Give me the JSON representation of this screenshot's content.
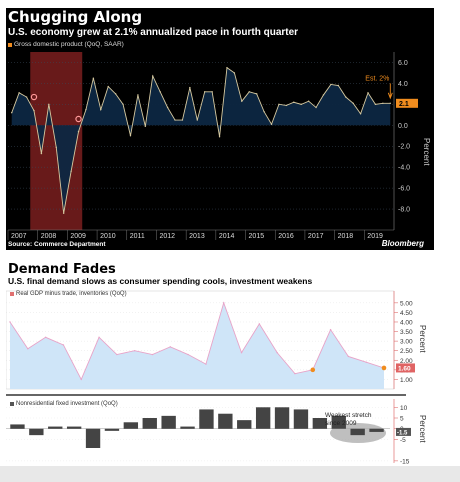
{
  "colors": {
    "area_top": "#0d2742",
    "line_top": "#d6c9a0",
    "recession": "#7a1e1e",
    "orange": "#f08c1e",
    "pink": "#ff9999",
    "area_bottom": "#cfe5f8",
    "line_bottom": "#e8a3c8",
    "bars": "#444444",
    "axis_bottom": "#e07070"
  },
  "top": {
    "title": "Chugging Along",
    "subtitle": "U.S. economy grew at 2.1% annualized pace in fourth quarter",
    "legend": "Gross domestic product (QoQ, SAAR)",
    "source": "Source: Commerce Department",
    "brand": "Bloomberg",
    "ylabel": "Percent",
    "est_label": "Est. 2%",
    "value_label": "2.1"
  },
  "bottom": {
    "title": "Demand Fades",
    "subtitle": "U.S. final demand slows as consumer spending cools, investment weakens",
    "legend1": "Real GDP minus trade, inventories (QoQ)",
    "legend2": "Nonresidential fixed investment (QoQ)",
    "ylabel1": "Percent",
    "ylabel2": "Percent",
    "value_label1": "1.60",
    "value_label2": "-1.5",
    "annotation": "Weakest stretch since 2009"
  },
  "chart_data": [
    {
      "type": "area",
      "title": "Chugging Along",
      "subtitle": "U.S. economy grew at 2.1% annualized pace in fourth quarter",
      "legend": [
        "Gross domestic product (QoQ, SAAR)"
      ],
      "ylabel": "Percent",
      "ylim": [
        -10,
        7
      ],
      "yticks": [
        "6.0",
        "4.0",
        "2.0",
        "0.0",
        "-2.0",
        "-4.0",
        "-6.0",
        "-8.0"
      ],
      "xticks": [
        "2007",
        "2008",
        "2009",
        "2010",
        "2011",
        "2012",
        "2013",
        "2014",
        "2015",
        "2016",
        "2017",
        "2018",
        "2019"
      ],
      "x": [
        "2007Q1",
        "2007Q2",
        "2007Q3",
        "2007Q4",
        "2008Q1",
        "2008Q2",
        "2008Q3",
        "2008Q4",
        "2009Q1",
        "2009Q2",
        "2009Q3",
        "2009Q4",
        "2010Q1",
        "2010Q2",
        "2010Q3",
        "2010Q4",
        "2011Q1",
        "2011Q2",
        "2011Q3",
        "2011Q4",
        "2012Q1",
        "2012Q2",
        "2012Q3",
        "2012Q4",
        "2013Q1",
        "2013Q2",
        "2013Q3",
        "2013Q4",
        "2014Q1",
        "2014Q2",
        "2014Q3",
        "2014Q4",
        "2015Q1",
        "2015Q2",
        "2015Q3",
        "2015Q4",
        "2016Q1",
        "2016Q2",
        "2016Q3",
        "2016Q4",
        "2017Q1",
        "2017Q2",
        "2017Q3",
        "2017Q4",
        "2018Q1",
        "2018Q2",
        "2018Q3",
        "2018Q4",
        "2019Q1",
        "2019Q2",
        "2019Q3",
        "2019Q4"
      ],
      "values": [
        1.2,
        3.1,
        2.7,
        1.4,
        -2.7,
        2.0,
        -2.1,
        -8.4,
        -4.4,
        -0.6,
        1.5,
        4.5,
        1.5,
        3.7,
        3.0,
        2.0,
        -1.0,
        2.9,
        -0.1,
        4.7,
        3.2,
        1.7,
        0.5,
        0.5,
        3.6,
        0.5,
        3.2,
        3.2,
        -1.1,
        5.5,
        5.0,
        2.3,
        3.2,
        3.0,
        1.3,
        0.1,
        2.0,
        1.9,
        2.2,
        2.0,
        2.3,
        1.7,
        2.9,
        3.9,
        3.8,
        2.7,
        2.1,
        1.1,
        3.1,
        2.0,
        2.1,
        2.1
      ],
      "recession": [
        "2007Q4",
        "2009Q2"
      ],
      "annotations": [
        "Est. 2%",
        "2.1"
      ],
      "grid": true
    },
    {
      "type": "area",
      "title": "Demand Fades",
      "subtitle": "U.S. final demand slows as consumer spending cools, investment weakens",
      "legend": [
        "Real GDP minus trade, inventories (QoQ)"
      ],
      "ylabel": "Percent",
      "ylim": [
        0.5,
        5.2
      ],
      "yticks": [
        "5.00",
        "4.50",
        "4.00",
        "3.50",
        "3.00",
        "2.50",
        "2.00",
        "1.50",
        "1.00"
      ],
      "x": [
        "2014Q3",
        "2014Q4",
        "2015Q1",
        "2015Q2",
        "2015Q3",
        "2015Q4",
        "2016Q1",
        "2016Q2",
        "2016Q3",
        "2016Q4",
        "2017Q1",
        "2017Q2",
        "2017Q3",
        "2017Q4",
        "2018Q1",
        "2018Q2",
        "2018Q3",
        "2018Q4",
        "2019Q1",
        "2019Q2",
        "2019Q3",
        "2019Q4"
      ],
      "values": [
        4.0,
        2.6,
        3.2,
        2.8,
        1.0,
        3.2,
        2.3,
        2.5,
        2.3,
        2.7,
        2.3,
        1.8,
        5.0,
        2.4,
        3.9,
        2.4,
        1.3,
        1.5,
        3.6,
        2.2,
        1.9,
        1.6
      ],
      "annotations": [
        "1.60"
      ],
      "grid": true
    },
    {
      "type": "bar",
      "legend": [
        "Nonresidential fixed investment (QoQ)"
      ],
      "ylabel": "Percent",
      "ylim": [
        -16,
        12
      ],
      "yticks": [
        "10",
        "5",
        "0",
        "-5",
        "-15"
      ],
      "x": [
        "2015Q1",
        "2015Q2",
        "2015Q3",
        "2015Q4",
        "2016Q1",
        "2016Q2",
        "2016Q3",
        "2016Q4",
        "2017Q1",
        "2017Q2",
        "2017Q3",
        "2017Q4",
        "2018Q1",
        "2018Q2",
        "2018Q3",
        "2018Q4",
        "2019Q1",
        "2019Q2",
        "2019Q3",
        "2019Q4"
      ],
      "values": [
        2.0,
        -3.0,
        1.0,
        1.0,
        -9.0,
        -1.0,
        3.0,
        5.0,
        6.0,
        1.0,
        9.0,
        7.0,
        4.0,
        10.0,
        10.0,
        9.0,
        5.0,
        6.0,
        -3.0,
        -1.5
      ],
      "annotations": [
        "Weakest stretch since 2009",
        "-1.5"
      ]
    }
  ]
}
